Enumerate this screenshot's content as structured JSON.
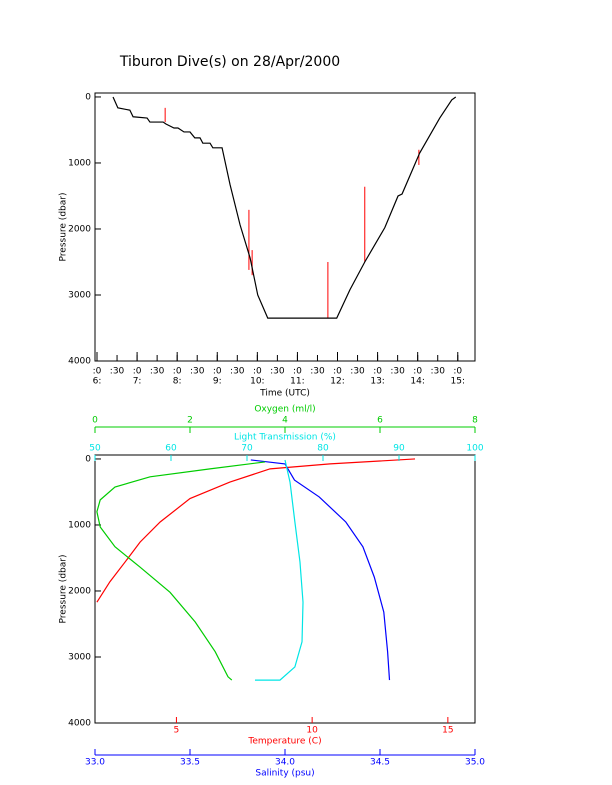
{
  "chart_data": [
    {
      "type": "line",
      "title": "Tiburon Dive(s) on 28/Apr/2000",
      "x_label": "Time (UTC)",
      "y_label": "Pressure (dbar)",
      "xlim": [
        5.95,
        15.43
      ],
      "ylim": [
        -60,
        4000
      ],
      "y_reversed": true,
      "yticks": [
        0,
        1000,
        2000,
        3000,
        4000
      ],
      "xticks": [
        {
          "value": 6,
          "label": ":0"
        },
        {
          "value": 6.5,
          "label": ":30"
        },
        {
          "value": 7,
          "label": ":0"
        },
        {
          "value": 7.5,
          "label": ":30"
        },
        {
          "value": 8,
          "label": ":0"
        },
        {
          "value": 8.5,
          "label": ":30"
        },
        {
          "value": 9,
          "label": ":0"
        },
        {
          "value": 9.5,
          "label": ":30"
        },
        {
          "value": 10,
          "label": ":0"
        },
        {
          "value": 10.5,
          "label": ":30"
        },
        {
          "value": 11,
          "label": ":0"
        },
        {
          "value": 11.5,
          "label": ":30"
        },
        {
          "value": 12,
          "label": ":0"
        },
        {
          "value": 12.5,
          "label": ":30"
        },
        {
          "value": 13,
          "label": ":0"
        },
        {
          "value": 13.5,
          "label": ":30"
        },
        {
          "value": 14,
          "label": ":0"
        },
        {
          "value": 14.5,
          "label": ":30"
        },
        {
          "value": 15,
          "label": ":0"
        }
      ],
      "xticks_hours": [
        {
          "value": 6,
          "label": "6:"
        },
        {
          "value": 7,
          "label": "7:"
        },
        {
          "value": 8,
          "label": "8:"
        },
        {
          "value": 9,
          "label": "9:"
        },
        {
          "value": 10,
          "label": "10:"
        },
        {
          "value": 11,
          "label": "11:"
        },
        {
          "value": 12,
          "label": "12:"
        },
        {
          "value": 13,
          "label": "13:"
        },
        {
          "value": 14,
          "label": "14:"
        },
        {
          "value": 15,
          "label": "15:"
        }
      ],
      "series": [
        {
          "color": "#000000",
          "x": [
            6.4,
            6.52,
            6.82,
            6.9,
            7.25,
            7.32,
            7.65,
            7.72,
            7.92,
            8.02,
            8.17,
            8.32,
            8.44,
            8.57,
            8.64,
            8.82,
            8.89,
            9.12,
            9.32,
            9.57,
            9.82,
            10.01,
            10.26,
            10.81,
            11.98,
            12.31,
            12.68,
            13.18,
            13.51,
            13.61,
            14.05,
            14.55,
            14.85,
            14.95
          ],
          "values": [
            0,
            165,
            200,
            300,
            320,
            380,
            380,
            410,
            470,
            470,
            530,
            530,
            620,
            620,
            700,
            700,
            770,
            770,
            1330,
            1940,
            2440,
            3000,
            3350,
            3350,
            3350,
            2920,
            2500,
            1980,
            1500,
            1470,
            850,
            320,
            45,
            0
          ]
        }
      ],
      "spikes": {
        "color": "#ff0000",
        "x": [
          7.7,
          9.79,
          9.87,
          11.76,
          12.68,
          14.03
        ],
        "top": [
          165,
          1710,
          2320,
          2500,
          1360,
          800
        ],
        "bottom": [
          380,
          2620,
          2700,
          3350,
          2500,
          1030
        ]
      }
    },
    {
      "type": "line",
      "y_label": "Pressure (dbar)",
      "ylim": [
        -60,
        4000
      ],
      "y_reversed": true,
      "yticks": [
        0,
        1000,
        2000,
        3000,
        4000
      ],
      "series": [
        {
          "title": "Temperature (C)",
          "color": "#ff0000",
          "axis_side": "bottom",
          "xlim": [
            2,
            16
          ],
          "xticks": [
            5,
            10,
            15
          ],
          "x": [
            13.79,
            10.66,
            8.45,
            6.97,
            5.5,
            4.4,
            3.66,
            3.11,
            2.55,
            2.07
          ],
          "values": [
            0,
            75,
            150,
            350,
            600,
            955,
            1260,
            1560,
            1860,
            2170
          ]
        },
        {
          "title": "Salinity (psu)",
          "color": "#0000ff",
          "axis_side": "bottom",
          "xlim": [
            33,
            35
          ],
          "xticks": [
            {
              "value": 33,
              "label": "33.0"
            },
            33.5,
            {
              "value": 34,
              "label": "34.0"
            },
            34.5,
            {
              "value": 35,
              "label": "35.0"
            }
          ],
          "x": [
            33.82,
            34.0,
            34.05,
            34.18,
            34.32,
            34.41,
            34.47,
            34.52,
            34.54,
            34.55
          ],
          "values": [
            15,
            75,
            320,
            575,
            955,
            1330,
            1790,
            2320,
            2920,
            3350
          ]
        },
        {
          "title": "Light Transmission (%)",
          "color": "#00e5e5",
          "axis_side": "top",
          "xlim": [
            50,
            100
          ],
          "xticks": [
            50,
            60,
            70,
            80,
            90,
            100
          ],
          "x": [
            75.0,
            75.66,
            76.3,
            76.97,
            77.37,
            77.24,
            76.3,
            74.34,
            71.05
          ],
          "values": [
            15,
            350,
            955,
            1560,
            2170,
            2770,
            3150,
            3350,
            3350
          ]
        },
        {
          "title": "Oxygen (ml/l)",
          "color": "#00cc00",
          "axis_side": "top",
          "xlim": [
            0,
            8
          ],
          "xticks": [
            0,
            2,
            4,
            6,
            8
          ],
          "x": [
            3.58,
            2.42,
            1.16,
            0.42,
            0.11,
            0.04,
            0.11,
            0.42,
            0.95,
            1.58,
            2.11,
            2.53,
            2.8,
            2.88
          ],
          "values": [
            45,
            150,
            270,
            425,
            620,
            800,
            1030,
            1330,
            1640,
            2020,
            2470,
            2920,
            3300,
            3350
          ]
        }
      ]
    }
  ]
}
